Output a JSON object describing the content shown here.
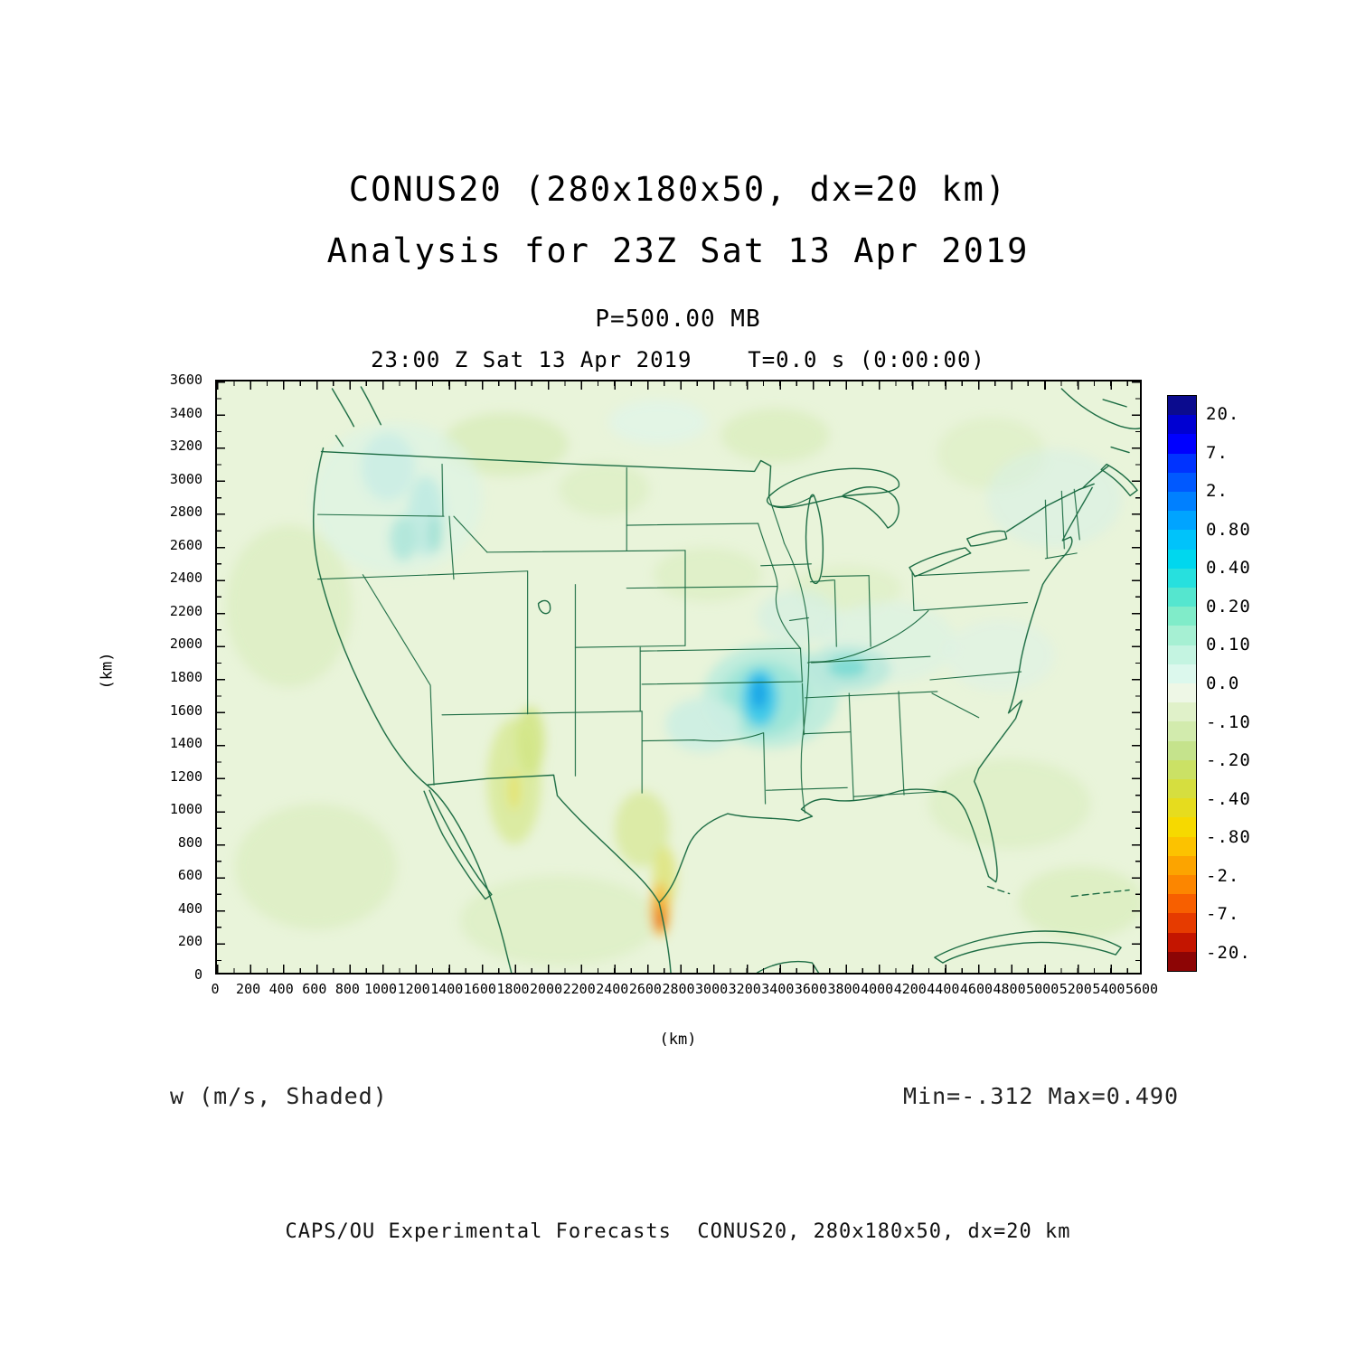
{
  "header": {
    "title_line1": "CONUS20 (280x180x50, dx=20 km)",
    "title_line2": "Analysis for 23Z Sat 13 Apr 2019",
    "level_line": "P=500.00 MB",
    "time_line": "23:00 Z Sat 13 Apr 2019    T=0.0 s (0:00:00)"
  },
  "axes": {
    "x": {
      "label": "(km)",
      "ticks": [
        0,
        200,
        400,
        600,
        800,
        1000,
        1200,
        1400,
        1600,
        1800,
        2000,
        2200,
        2400,
        2600,
        2800,
        3000,
        3200,
        3400,
        3600,
        3800,
        4000,
        4200,
        4400,
        4600,
        4800,
        5000,
        5200,
        5400,
        5600
      ]
    },
    "y": {
      "label": "(km)",
      "ticks": [
        0,
        200,
        400,
        600,
        800,
        1000,
        1200,
        1400,
        1600,
        1800,
        2000,
        2200,
        2400,
        2600,
        2800,
        3000,
        3200,
        3400,
        3600
      ]
    }
  },
  "colorbar": {
    "labels": [
      "20.",
      "7.",
      "2.",
      "0.80",
      "0.40",
      "0.20",
      "0.10",
      "0.0",
      "-.10",
      "-.20",
      "-.40",
      "-.80",
      "-2.",
      "-7.",
      "-20."
    ],
    "colors": [
      "#0b0b8e",
      "#0000d2",
      "#0000ff",
      "#0033ff",
      "#0059ff",
      "#0080ff",
      "#00a4ff",
      "#00c3fa",
      "#00d7ee",
      "#27e0de",
      "#55e6cf",
      "#80ecc9",
      "#a6f0d3",
      "#c4f4e1",
      "#dcf8ed",
      "#eef7e6",
      "#e0f1c9",
      "#d2ebad",
      "#c5e38c",
      "#cbe165",
      "#d6de3f",
      "#e6dc1e",
      "#f6d900",
      "#fcc200",
      "#fca400",
      "#fc8600",
      "#f75f00",
      "#e63b00",
      "#c41500",
      "#8d0505"
    ]
  },
  "footer_left": "w (m/s, Shaded)",
  "footer_right": "Min=-.312 Max=0.490",
  "credit": "CAPS/OU Experimental Forecasts  CONUS20, 280x180x50, dx=20 km",
  "chart_data": {
    "type": "heatmap",
    "title": "CONUS20 (280x180x50, dx=20 km) — Analysis for 23Z Sat 13 Apr 2019",
    "field": "w (m/s, Shaded)",
    "level": "P=500.00 MB",
    "valid_time": "23:00 Z Sat 13 Apr 2019",
    "forecast_time": "T=0.0 s (0:00:00)",
    "xlabel": "(km)",
    "ylabel": "(km)",
    "xlim": [
      0,
      5600
    ],
    "ylim": [
      0,
      3600
    ],
    "value_min": -0.312,
    "value_max": 0.49,
    "contour_levels": [
      20,
      7,
      2,
      0.8,
      0.4,
      0.2,
      0.1,
      0.0,
      -0.1,
      -0.2,
      -0.4,
      -0.8,
      -2,
      -7,
      -20
    ],
    "legend_position": "right",
    "grid": false,
    "features": [
      {
        "name": "background",
        "value_range": [
          -0.1,
          0.0
        ],
        "description": "broad weak vertical motion (pale green) covering most of the CONUS domain"
      },
      {
        "name": "updraft-maximum",
        "value": 0.49,
        "x_km": 3300,
        "y_km": 1550,
        "description": "cyan/blue ascent maximum over Arkansas / Mid-South"
      },
      {
        "name": "secondary-ascent",
        "value_range": [
          0.1,
          0.3
        ],
        "x_km": 3800,
        "y_km": 1700,
        "description": "pale cyan ascent over Tennessee valley"
      },
      {
        "name": "northwest-ascent",
        "value_range": [
          0.1,
          0.3
        ],
        "x_km": 1100,
        "y_km": 2900,
        "description": "pale cyan patches over Washington / Idaho"
      },
      {
        "name": "downdraft-minimum",
        "value": -0.312,
        "x_km": 2700,
        "y_km": 300,
        "description": "orange/red descent streak over south Texas / northern Mexico"
      },
      {
        "name": "terrain-bands",
        "value_range": [
          -0.4,
          -0.2
        ],
        "x_km": 1800,
        "y_km": 1200,
        "description": "yellow-green descent bands over New Mexico / Colorado high terrain"
      }
    ]
  }
}
